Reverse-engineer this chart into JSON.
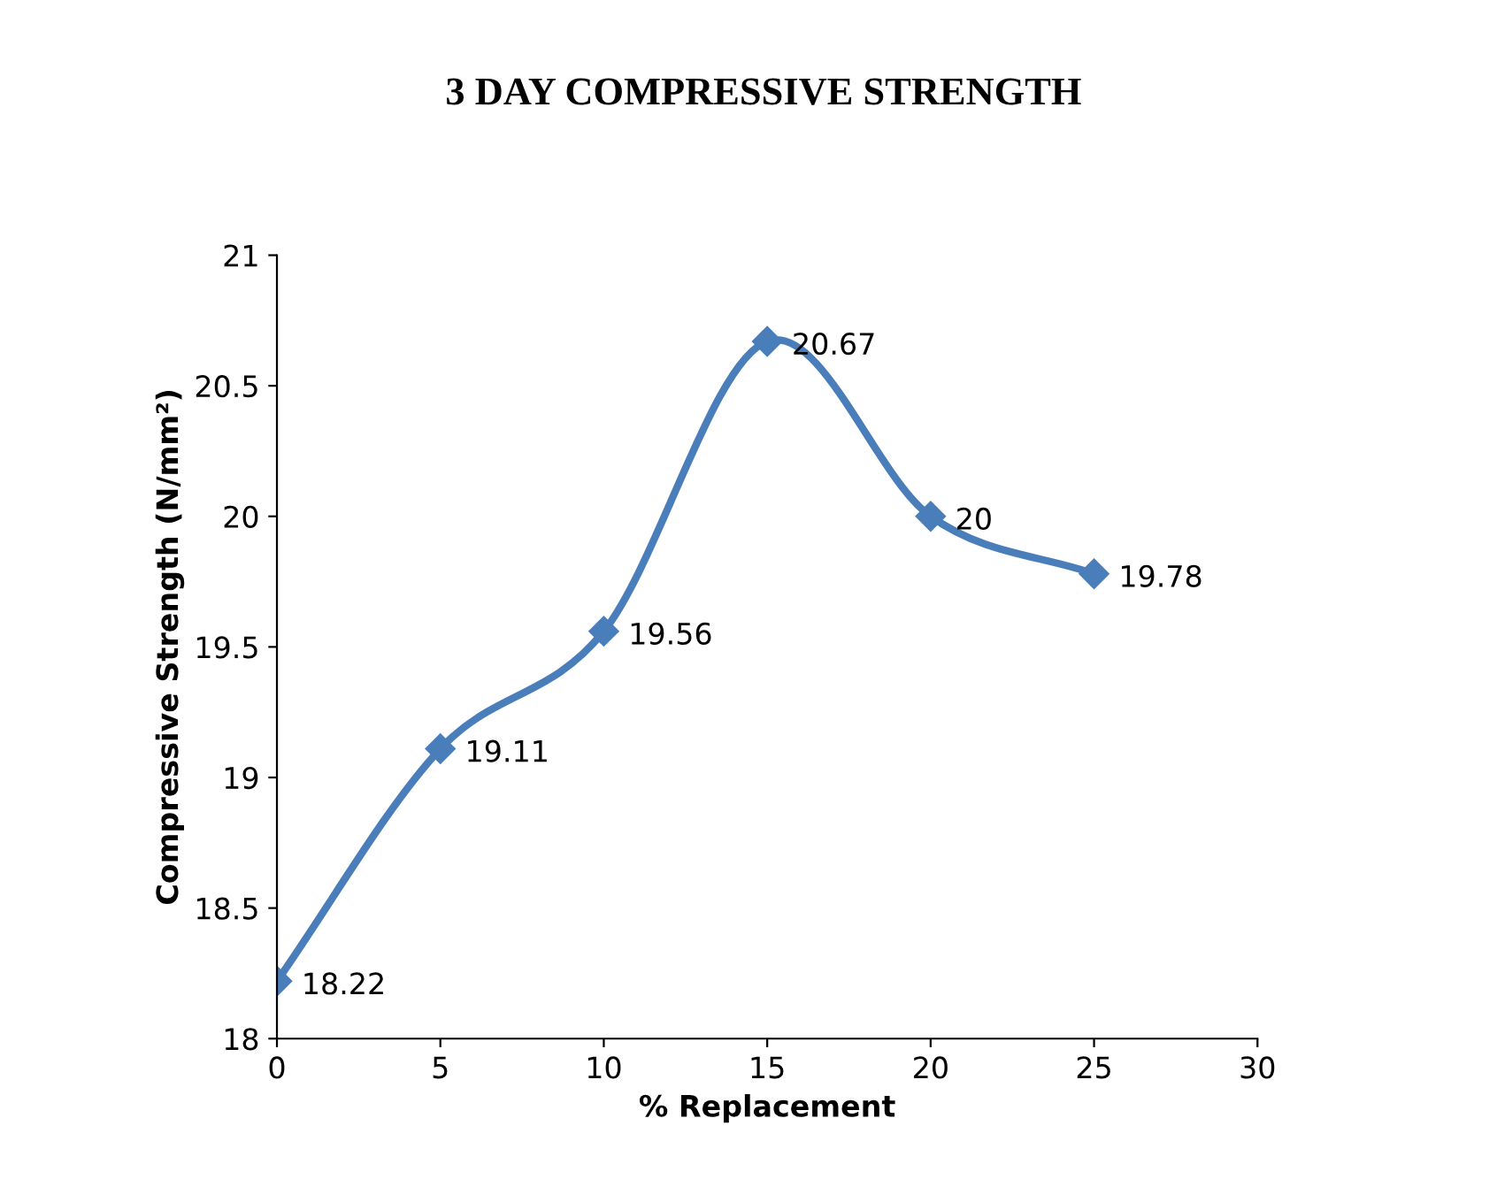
{
  "chart_data": {
    "type": "line",
    "title": "3 DAY COMPRESSIVE STRENGTH",
    "xlabel": "% Replacement",
    "ylabel": "Compressive Strength (N/mm²)",
    "x": [
      0,
      5,
      10,
      15,
      20,
      25
    ],
    "series": [
      {
        "color": "#4a7ebb",
        "values": [
          18.22,
          19.11,
          19.56,
          20.67,
          20,
          19.78
        ]
      }
    ],
    "xlim": [
      0,
      30
    ],
    "xticks": [
      0,
      5,
      10,
      15,
      20,
      25,
      30
    ],
    "ylim": [
      18,
      21
    ],
    "yticks": [
      18,
      18.5,
      19,
      19.5,
      20,
      20.5,
      21
    ],
    "data_labels": true,
    "grid": false,
    "legend": false,
    "marker": "diamond",
    "line_style": "solid"
  }
}
